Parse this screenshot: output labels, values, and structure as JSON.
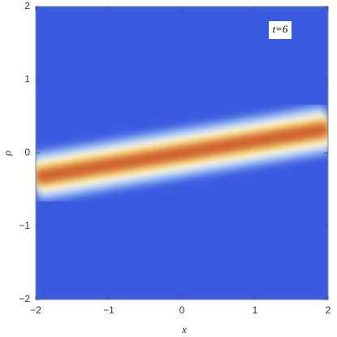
{
  "chart_data": {
    "type": "density",
    "annotation": "t=6",
    "xlabel": "x",
    "ylabel": "ρ",
    "xlim": [
      -2,
      2
    ],
    "ylim": [
      -2,
      2
    ],
    "xticks": [
      {
        "value": -2,
        "label": "−2"
      },
      {
        "value": -1,
        "label": "−1"
      },
      0,
      1,
      2
    ],
    "yticks": [
      {
        "value": -2,
        "label": "−2"
      },
      {
        "value": -1,
        "label": "−1"
      },
      0,
      1,
      2
    ],
    "x": [
      -2,
      -1,
      0,
      1,
      2
    ],
    "values": [
      -0.33,
      -0.165,
      0,
      0.165,
      0.33
    ],
    "background_color": "#3a5be0",
    "colors": [
      "#8fb4f0",
      "#ffffff",
      "#f5e27a",
      "#e0813a",
      "#c4502a"
    ]
  }
}
